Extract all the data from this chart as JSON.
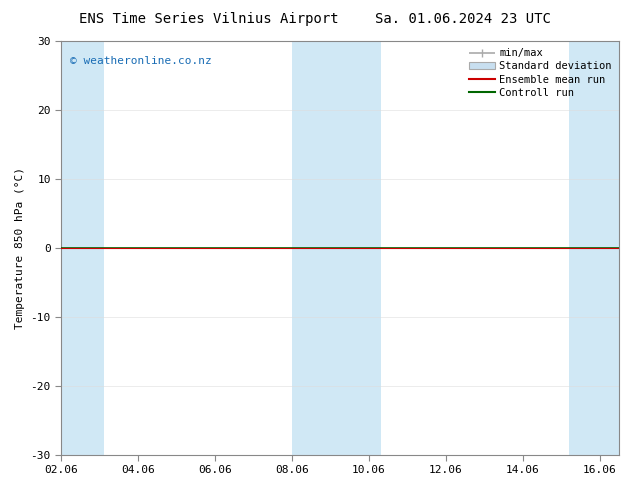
{
  "title_left": "ENS Time Series Vilnius Airport",
  "title_right": "Sa. 01.06.2024 23 UTC",
  "ylabel": "Temperature 850 hPa (°C)",
  "watermark": "© weatheronline.co.nz",
  "ylim": [
    -30,
    30
  ],
  "yticks": [
    -30,
    -20,
    -10,
    0,
    10,
    20,
    30
  ],
  "xlim_start": 0.0,
  "xlim_end": 14.5,
  "xtick_labels": [
    "02.06",
    "04.06",
    "06.06",
    "08.06",
    "10.06",
    "12.06",
    "14.06",
    "16.06"
  ],
  "xtick_positions": [
    0,
    2,
    4,
    6,
    8,
    10,
    12,
    14
  ],
  "shaded_bands": [
    [
      0.0,
      1.1
    ],
    [
      6.0,
      7.5
    ],
    [
      7.5,
      8.3
    ],
    [
      13.2,
      14.5
    ]
  ],
  "shaded_color": "#d0e8f5",
  "background_color": "#ffffff",
  "zero_line_color_red": "#cc0000",
  "zero_line_color_green": "#006600",
  "ensemble_mean_color": "#cc0000",
  "control_run_color": "#006600",
  "std_dev_color": "#c8dff0",
  "minmax_color": "#aaaaaa",
  "title_fontsize": 10,
  "axis_fontsize": 8,
  "tick_fontsize": 8,
  "watermark_color": "#1a6db5",
  "legend_fontsize": 7.5,
  "zero_linewidth": 1.5
}
